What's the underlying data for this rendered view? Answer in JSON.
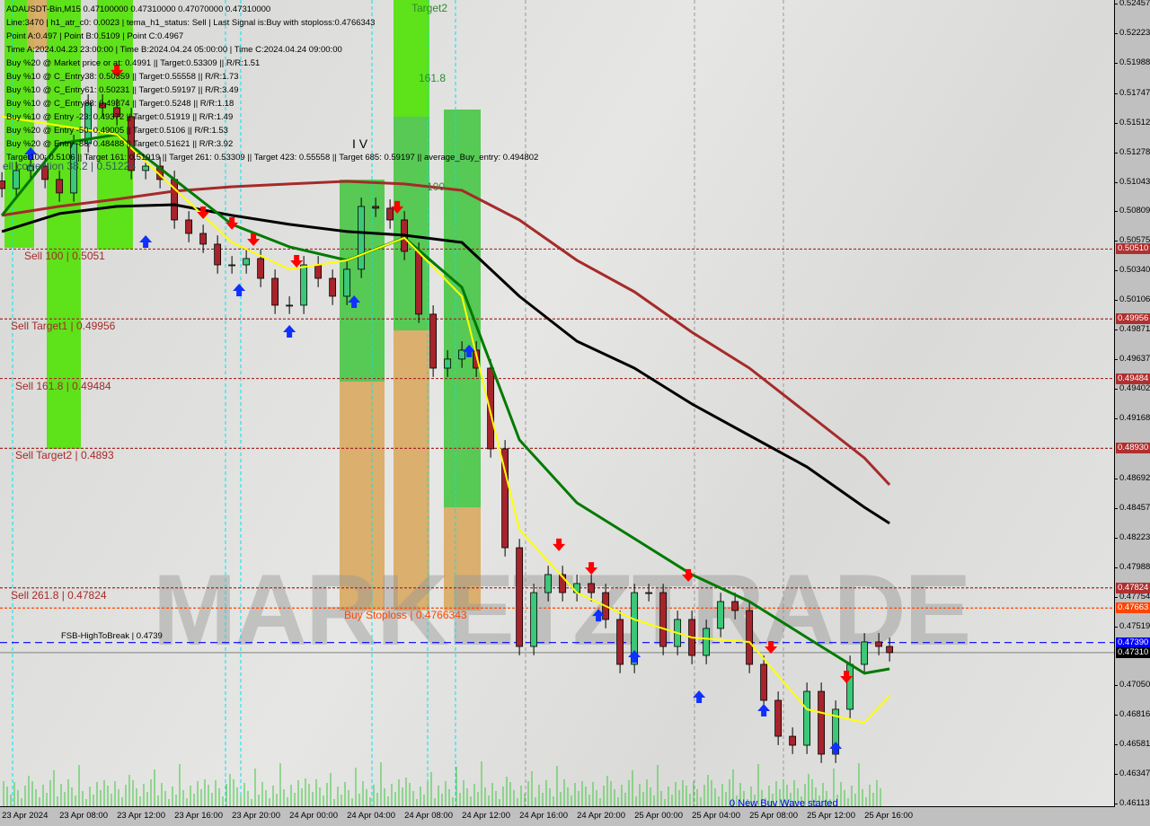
{
  "chart_data": {
    "type": "candlestick",
    "symbol_line": "ADAUSDT-Bin,M15  0.47100000 0.47310000 0.47070000 0.47310000",
    "ylim": [
      0.46092,
      0.52485
    ],
    "xlim": [
      "2024-04-23 03:52",
      "2024-04-26 09:22"
    ],
    "y_ticks": [
      "0.52457",
      "0.52223",
      "0.51988",
      "0.51747",
      "0.51512",
      "0.51278",
      "0.51043",
      "0.50809",
      "0.50575",
      "0.50340",
      "0.50106",
      "0.49871",
      "0.49637",
      "0.49402",
      "0.49168",
      "0.48692",
      "0.48457",
      "0.48223",
      "0.47988",
      "0.47754",
      "0.47519",
      "0.47050",
      "0.46816",
      "0.46581",
      "0.46347",
      "0.46113"
    ],
    "x_ticks": [
      {
        "t": "2024-04-23 04:00",
        "label": "23 Apr 2024"
      },
      {
        "t": "2024-04-23 08:00",
        "label": "23 Apr 08:00"
      },
      {
        "t": "2024-04-23 12:00",
        "label": "23 Apr 12:00"
      },
      {
        "t": "2024-04-23 16:00",
        "label": "23 Apr 16:00"
      },
      {
        "t": "2024-04-23 20:00",
        "label": "23 Apr 20:00"
      },
      {
        "t": "2024-04-24 00:00",
        "label": "24 Apr 00:00"
      },
      {
        "t": "2024-04-24 04:00",
        "label": "24 Apr 04:00"
      },
      {
        "t": "2024-04-24 08:00",
        "label": "24 Apr 08:00"
      },
      {
        "t": "2024-04-24 12:00",
        "label": "24 Apr 12:00"
      },
      {
        "t": "2024-04-24 16:00",
        "label": "24 Apr 16:00"
      },
      {
        "t": "2024-04-24 20:00",
        "label": "24 Apr 20:00"
      },
      {
        "t": "2024-04-25 00:00",
        "label": "25 Apr 00:00"
      },
      {
        "t": "2024-04-25 04:00",
        "label": "25 Apr 04:00"
      },
      {
        "t": "2024-04-25 08:00",
        "label": "25 Apr 08:00"
      },
      {
        "t": "2024-04-25 12:00",
        "label": "25 Apr 12:00"
      },
      {
        "t": "2024-04-25 16:00",
        "label": "25 Apr 16:00"
      }
    ],
    "candles": {
      "times": [
        "2024-04-23 04:00",
        "2024-04-23 05:00",
        "2024-04-23 06:00",
        "2024-04-23 07:00",
        "2024-04-23 08:00",
        "2024-04-23 09:00",
        "2024-04-23 10:00",
        "2024-04-23 11:00",
        "2024-04-23 12:00",
        "2024-04-23 13:00",
        "2024-04-23 14:00",
        "2024-04-23 15:00",
        "2024-04-23 16:00",
        "2024-04-23 17:00",
        "2024-04-23 18:00",
        "2024-04-23 19:00",
        "2024-04-23 20:00",
        "2024-04-23 21:00",
        "2024-04-23 22:00",
        "2024-04-23 23:00",
        "2024-04-24 00:00",
        "2024-04-24 01:00",
        "2024-04-24 02:00",
        "2024-04-24 03:00",
        "2024-04-24 04:00",
        "2024-04-24 05:00",
        "2024-04-24 06:00",
        "2024-04-24 07:00",
        "2024-04-24 08:00",
        "2024-04-24 09:00",
        "2024-04-24 10:00",
        "2024-04-24 11:00",
        "2024-04-24 12:00",
        "2024-04-24 13:00",
        "2024-04-24 14:00",
        "2024-04-24 15:00",
        "2024-04-24 16:00",
        "2024-04-24 17:00",
        "2024-04-24 18:00",
        "2024-04-24 19:00",
        "2024-04-24 20:00",
        "2024-04-24 21:00",
        "2024-04-24 22:00",
        "2024-04-24 23:00",
        "2024-04-25 00:00",
        "2024-04-25 01:00",
        "2024-04-25 02:00",
        "2024-04-25 03:00",
        "2024-04-25 04:00",
        "2024-04-25 05:00",
        "2024-04-25 06:00",
        "2024-04-25 07:00",
        "2024-04-25 08:00",
        "2024-04-25 09:00",
        "2024-04-25 10:00",
        "2024-04-25 11:00",
        "2024-04-25 12:00",
        "2024-04-25 13:00",
        "2024-04-25 14:00",
        "2024-04-25 15:00",
        "2024-04-25 16:00",
        "2024-04-25 17:00",
        "2024-04-25 17:45"
      ],
      "close": [
        0.5099,
        0.51133,
        0.51168,
        0.51062,
        0.50955,
        0.51346,
        0.51667,
        0.51631,
        0.5156,
        0.51133,
        0.51168,
        0.51062,
        0.50741,
        0.50634,
        0.50549,
        0.50385,
        0.50385,
        0.50435,
        0.50278,
        0.50065,
        0.50065,
        0.50385,
        0.50278,
        0.50136,
        0.5035,
        0.50848,
        0.50834,
        0.50741,
        0.50492,
        0.49994,
        0.49566,
        0.49638,
        0.49709,
        0.49566,
        0.48926,
        0.48142,
        0.47359,
        0.47786,
        0.47929,
        0.47786,
        0.47858,
        0.47786,
        0.47573,
        0.47217,
        0.47786,
        0.47786,
        0.47359,
        0.47573,
        0.47288,
        0.47502,
        0.47715,
        0.47644,
        0.47217,
        0.46932,
        0.46647,
        0.46576,
        0.47003,
        0.46505,
        0.46861,
        0.47217,
        0.47395,
        0.47359,
        0.4731
      ]
    },
    "ma_times": [
      "2024-04-23 04:00",
      "2024-04-23 08:00",
      "2024-04-23 12:00",
      "2024-04-23 16:00",
      "2024-04-23 20:00",
      "2024-04-24 00:00",
      "2024-04-24 04:00",
      "2024-04-24 08:00",
      "2024-04-24 12:00",
      "2024-04-24 16:00",
      "2024-04-24 20:00",
      "2024-04-25 00:00",
      "2024-04-25 04:00",
      "2024-04-25 08:00",
      "2024-04-25 12:00",
      "2024-04-25 16:00",
      "2024-04-25 17:45"
    ],
    "series": [
      {
        "color": "#a52a2a",
        "values": [
          0.50777,
          0.50848,
          0.50905,
          0.50969,
          0.51004,
          0.51026,
          0.51047,
          0.51026,
          0.50976,
          0.50741,
          0.50421,
          0.50171,
          0.49851,
          0.49566,
          0.4921,
          0.48854,
          0.48641
        ]
      },
      {
        "color": "#000000",
        "values": [
          0.50649,
          0.50791,
          0.50848,
          0.50862,
          0.50777,
          0.50706,
          0.50649,
          0.5062,
          0.50563,
          0.50136,
          0.4978,
          0.49566,
          0.49282,
          0.49032,
          0.48783,
          0.48463,
          0.48335
        ]
      },
      {
        "color": "#007a00",
        "values": [
          0.50777,
          0.51346,
          0.51418,
          0.51062,
          0.50706,
          0.50528,
          0.50421,
          0.50599,
          0.50207,
          0.48997,
          0.48498,
          0.48214,
          0.47929,
          0.47715,
          0.4743,
          0.47146,
          0.47181
        ]
      },
      {
        "color": "#ffff00",
        "values": [
          0.5156,
          0.51489,
          0.51418,
          0.5099,
          0.50563,
          0.5035,
          0.50421,
          0.50599,
          0.50136,
          0.48285,
          0.47786,
          0.47573,
          0.4743,
          0.47395,
          0.46861,
          0.46754,
          0.46968
        ]
      }
    ],
    "signals": [
      {
        "type": "sell",
        "t": "2024-04-23 12:00",
        "p": 0.51916
      },
      {
        "type": "sell",
        "t": "2024-04-23 18:00",
        "p": 0.50791
      },
      {
        "type": "sell",
        "t": "2024-04-23 20:00",
        "p": 0.50706
      },
      {
        "type": "sell",
        "t": "2024-04-23 21:30",
        "p": 0.50577
      },
      {
        "type": "sell",
        "t": "2024-04-24 00:30",
        "p": 0.50406
      },
      {
        "type": "sell",
        "t": "2024-04-24 07:30",
        "p": 0.50834
      },
      {
        "type": "sell",
        "t": "2024-04-24 18:45",
        "p": 0.48157
      },
      {
        "type": "sell",
        "t": "2024-04-24 21:00",
        "p": 0.47971
      },
      {
        "type": "sell",
        "t": "2024-04-25 03:45",
        "p": 0.47915
      },
      {
        "type": "sell",
        "t": "2024-04-25 09:30",
        "p": 0.47345
      },
      {
        "type": "sell",
        "t": "2024-04-25 14:45",
        "p": 0.4711
      },
      {
        "type": "buy",
        "t": "2024-04-23 06:00",
        "p": 0.51275
      },
      {
        "type": "buy",
        "t": "2024-04-23 14:00",
        "p": 0.50577
      },
      {
        "type": "buy",
        "t": "2024-04-23 20:30",
        "p": 0.50193
      },
      {
        "type": "buy",
        "t": "2024-04-24 00:00",
        "p": 0.49865
      },
      {
        "type": "buy",
        "t": "2024-04-24 04:30",
        "p": 0.501
      },
      {
        "type": "buy",
        "t": "2024-04-24 12:30",
        "p": 0.49709
      },
      {
        "type": "buy",
        "t": "2024-04-24 21:30",
        "p": 0.47615
      },
      {
        "type": "buy",
        "t": "2024-04-25 00:00",
        "p": 0.47288
      },
      {
        "type": "buy",
        "t": "2024-04-25 04:30",
        "p": 0.46968
      },
      {
        "type": "buy",
        "t": "2024-04-25 09:00",
        "p": 0.46861
      },
      {
        "type": "buy",
        "t": "2024-04-25 14:00",
        "p": 0.46562
      }
    ],
    "levels": [
      {
        "price": 0.5051,
        "label": "Sell 100 | 0.5051",
        "badge": "0.50510",
        "color": "#a52a2a",
        "style": "dotted"
      },
      {
        "price": 0.49956,
        "label": "Sell Target1 | 0.49956",
        "badge": "0.49956",
        "color": "#a52a2a",
        "style": "dotted"
      },
      {
        "price": 0.49484,
        "label": "Sell 161.8 | 0.49484",
        "badge": "0.49484",
        "color": "#a52a2a",
        "style": "dotted"
      },
      {
        "price": 0.4893,
        "label": "Sell Target2 | 0.4893",
        "badge": "0.48930",
        "color": "#a52a2a",
        "style": "dotted"
      },
      {
        "price": 0.47824,
        "label": "Sell 261.8 | 0.47824",
        "badge": "0.47824",
        "color": "#a52a2a",
        "style": "dotted"
      },
      {
        "price": 0.4766343,
        "label": "Buy Stoploss | 0.4766343",
        "badge": "0.47663",
        "color": "#ff4500",
        "style": "dotted"
      },
      {
        "price": 0.4739,
        "label": "FSB-HighToBreak | 0.4739",
        "badge": "0.47390",
        "color": "#0000ff",
        "style": "dashed"
      },
      {
        "price": 0.4731,
        "label": "",
        "badge": "0.47310",
        "color": "#808080",
        "style": "solid"
      }
    ]
  },
  "info_lines": [
    "ADAUSDT-Bin,M15  0.47100000 0.47310000 0.47070000 0.47310000",
    "Line:3470 | h1_atr_c0: 0.0023 | tema_h1_status: Sell | Last Signal is:Buy with stoploss:0.4766343",
    "Point A:0.497 | Point B:0.5109 | Point C:0.4967",
    "Time A:2024.04.23 23:00:00 | Time B:2024.04.24 05:00:00 | Time C:2024.04.24 09:00:00",
    "Buy %20 @ Market price or at: 0.4991 || Target:0.53309 || R/R:1.51",
    "Buy %10 @ C_Entry38: 0.50359 || Target:0.55558 || R/R:1.73",
    "Buy %10 @ C_Entry61: 0.50231 || Target:0.59197 || R/R:3.49",
    "Buy %10 @ C_Entry88: 0.49874 || Target:0.5248 || R/R:1.18",
    "Buy %10 @ Entry -23: 0.49372 || Target:0.51919 || R/R:1.49",
    "Buy %20 @ Entry -50: 0.49005 || Target:0.5106 || R/R:1.53",
    "Buy %20 @ Entry -88: 0.48488 || Target:0.51621 || R/R:3.92",
    "Target100: 0.5106 || Target 161: 0.51919 || Target 261: 0.53309 || Target 423: 0.55558 || Target 685: 0.59197 || average_Buy_entry: 0.494802"
  ],
  "labels": {
    "target2": "Target2",
    "fib_161": "161.8",
    "fib_100": "100",
    "wave": "I V",
    "correction": "ell correction 38.2 | 0.51224",
    "new_wave": "0 New Buy Wave started"
  },
  "watermark": "MARKETZTRADE"
}
